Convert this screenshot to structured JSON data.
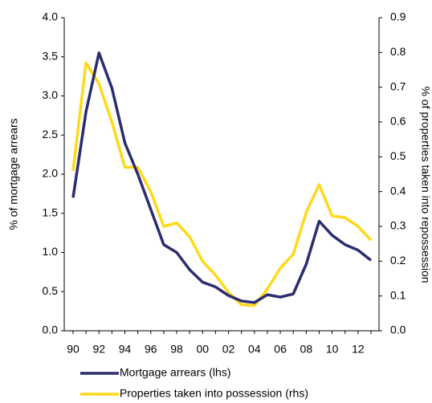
{
  "chart_data": {
    "type": "line",
    "y_label": "% of mortgage arrears",
    "y2_label": "% of properties taken into repossession",
    "categories": [
      "90",
      null,
      "92",
      null,
      "94",
      null,
      "96",
      null,
      "98",
      null,
      "00",
      null,
      "02",
      null,
      "04",
      null,
      "06",
      null,
      "08",
      null,
      "10",
      null,
      "12",
      null
    ],
    "series": [
      {
        "name": "Mortgage arrears (lhs)",
        "color": "#2b2d6e",
        "values": [
          1.7,
          2.8,
          3.55,
          3.1,
          2.4,
          2.0,
          1.55,
          1.1,
          1.0,
          0.78,
          0.62,
          0.56,
          0.45,
          0.38,
          0.36,
          0.46,
          0.43,
          0.47,
          0.85,
          1.4,
          1.22,
          1.1,
          1.03,
          0.9
        ]
      },
      {
        "name": "Properties taken into possession  (rhs)",
        "color": "#ffd81a",
        "axis": "y2",
        "values": [
          0.46,
          0.77,
          0.71,
          0.6,
          0.47,
          0.47,
          0.4,
          0.3,
          0.31,
          0.27,
          0.2,
          0.16,
          0.11,
          0.075,
          0.072,
          0.12,
          0.18,
          0.22,
          0.34,
          0.42,
          0.33,
          0.325,
          0.3,
          0.26
        ]
      }
    ],
    "ylim": [
      0,
      4
    ],
    "yticks": [
      {
        "value": 0,
        "label": "0.0"
      },
      0.5,
      {
        "value": 1,
        "label": "1.0"
      },
      1.5,
      {
        "value": 2,
        "label": "2.0"
      },
      2.5,
      {
        "value": 3,
        "label": "3.0"
      },
      3.5,
      {
        "value": 4,
        "label": "4.0"
      }
    ],
    "y2lim": [
      0,
      0.9
    ],
    "y2ticks": [
      {
        "value": 0,
        "label": "0.0"
      },
      0.1,
      0.2,
      0.3,
      0.4,
      0.5,
      0.6,
      0.7,
      0.8,
      0.9
    ],
    "grid": false,
    "legend": "bottom"
  }
}
